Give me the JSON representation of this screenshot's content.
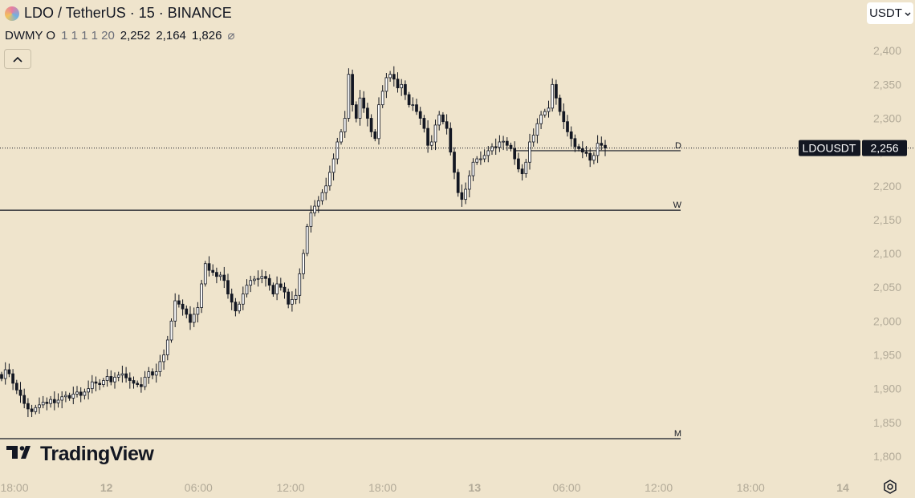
{
  "header": {
    "symbol_title": "LDO / TetherUS · 15 · BINANCE"
  },
  "indicator": {
    "name": "DWMY O",
    "params": "1 1 1 1 20",
    "values": [
      "2,252",
      "2,164",
      "1,826"
    ],
    "hide_icon": "⌀"
  },
  "currency": {
    "label": "USDT"
  },
  "collapse_icon": "chevron-up-icon",
  "watermark": {
    "text": "TradingView"
  },
  "price_tag": {
    "symbol": "LDOUSDT",
    "price": "2,256"
  },
  "colors": {
    "background": "#efe4cc",
    "candle": "#131722",
    "hollow": "#ffffff",
    "axis_text": "#b2aa98"
  },
  "chart_data": {
    "type": "candlestick",
    "symbol": "LDOUSDT",
    "interval": "15",
    "ylim": [
      1775,
      2475
    ],
    "y_ticks": [
      1800,
      1850,
      1900,
      1950,
      2000,
      2050,
      2100,
      2150,
      2200,
      2250,
      2300,
      2350,
      2400
    ],
    "y_tick_labels": [
      "1,800",
      "1,850",
      "1,900",
      "1,950",
      "2,000",
      "2,050",
      "2,100",
      "2,150",
      "2,200",
      "2,250",
      "2,300",
      "2,350",
      "2,400"
    ],
    "x_ticks": [
      {
        "hours": 0,
        "label": "18:00"
      },
      {
        "hours": 6,
        "label": "12"
      },
      {
        "hours": 12,
        "label": "06:00"
      },
      {
        "hours": 18,
        "label": "12:00"
      },
      {
        "hours": 24,
        "label": "18:00"
      },
      {
        "hours": 30,
        "label": "13"
      },
      {
        "hours": 36,
        "label": "06:00"
      },
      {
        "hours": 42,
        "label": "12:00"
      },
      {
        "hours": 48,
        "label": "18:00"
      },
      {
        "hours": 54,
        "label": "14"
      }
    ],
    "levels": [
      {
        "label": "D",
        "value": 2252
      },
      {
        "label": "W",
        "value": 2164
      },
      {
        "label": "M",
        "value": 1826
      }
    ],
    "last_price": 2256,
    "closes": [
      1915,
      1928,
      1922,
      1908,
      1898,
      1890,
      1878,
      1870,
      1866,
      1872,
      1876,
      1880,
      1878,
      1884,
      1879,
      1883,
      1888,
      1890,
      1886,
      1892,
      1895,
      1890,
      1895,
      1900,
      1910,
      1908,
      1906,
      1912,
      1918,
      1910,
      1917,
      1920,
      1922,
      1916,
      1912,
      1908,
      1906,
      1903,
      1917,
      1925,
      1920,
      1925,
      1940,
      1950,
      1972,
      2000,
      2030,
      2025,
      2018,
      2010,
      1998,
      2010,
      2020,
      2055,
      2085,
      2075,
      2072,
      2066,
      2068,
      2060,
      2040,
      2028,
      2015,
      2025,
      2040,
      2053,
      2060,
      2062,
      2063,
      2066,
      2063,
      2053,
      2040,
      2055,
      2050,
      2043,
      2025,
      2032,
      2038,
      2070,
      2100,
      2140,
      2160,
      2170,
      2178,
      2190,
      2200,
      2220,
      2240,
      2265,
      2280,
      2300,
      2365,
      2320,
      2300,
      2330,
      2315,
      2300,
      2280,
      2270,
      2320,
      2340,
      2360,
      2365,
      2358,
      2345,
      2350,
      2335,
      2320,
      2320,
      2310,
      2300,
      2285,
      2260,
      2265,
      2290,
      2305,
      2295,
      2285,
      2250,
      2220,
      2190,
      2180,
      2195,
      2215,
      2235,
      2240,
      2240,
      2245,
      2252,
      2258,
      2257,
      2265,
      2266,
      2260,
      2255,
      2240,
      2225,
      2218,
      2235,
      2265,
      2275,
      2292,
      2305,
      2310,
      2315,
      2350,
      2330,
      2310,
      2295,
      2280,
      2270,
      2258,
      2255,
      2250,
      2248,
      2238,
      2245,
      2263,
      2260,
      2256
    ]
  }
}
